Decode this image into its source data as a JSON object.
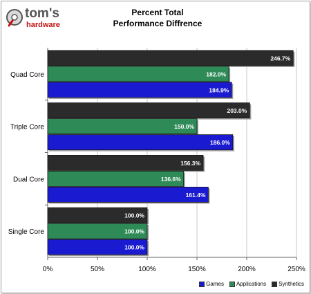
{
  "logo": {
    "brand_top": "tom's",
    "brand_bottom": "hardware"
  },
  "chart_data": {
    "type": "bar",
    "orientation": "horizontal",
    "title_line1": "Percent Total",
    "title_line2": "Performance Diffrence",
    "categories": [
      "Quad Core",
      "Triple Core",
      "Dual Core",
      "Single Core"
    ],
    "series": [
      {
        "name": "Synthetics",
        "color": "#2b2b2b",
        "values": [
          246.7,
          203.0,
          156.3,
          100.0
        ],
        "labels": [
          "246.7%",
          "203.0%",
          "156.3%",
          "100.0%"
        ]
      },
      {
        "name": "Applications",
        "color": "#2e8b57",
        "values": [
          182.0,
          150.0,
          136.6,
          100.0
        ],
        "labels": [
          "182.0%",
          "150.0%",
          "136.6%",
          "100.0%"
        ]
      },
      {
        "name": "Games",
        "color": "#1a1ad0",
        "values": [
          184.9,
          186.0,
          161.4,
          100.0
        ],
        "labels": [
          "184.9%",
          "186.0%",
          "161.4%",
          "100.0%"
        ]
      }
    ],
    "xlim": [
      0,
      250
    ],
    "x_ticks": [
      0,
      50,
      100,
      150,
      200,
      250
    ],
    "x_tick_labels": [
      "0%",
      "50%",
      "100%",
      "150%",
      "200%",
      "250%"
    ],
    "legend": [
      {
        "name": "Games",
        "color": "#1a1ad0"
      },
      {
        "name": "Applications",
        "color": "#2e8b57"
      },
      {
        "name": "Synthetics",
        "color": "#2b2b2b"
      }
    ],
    "legend_position": "bottom-right",
    "grid": true
  }
}
